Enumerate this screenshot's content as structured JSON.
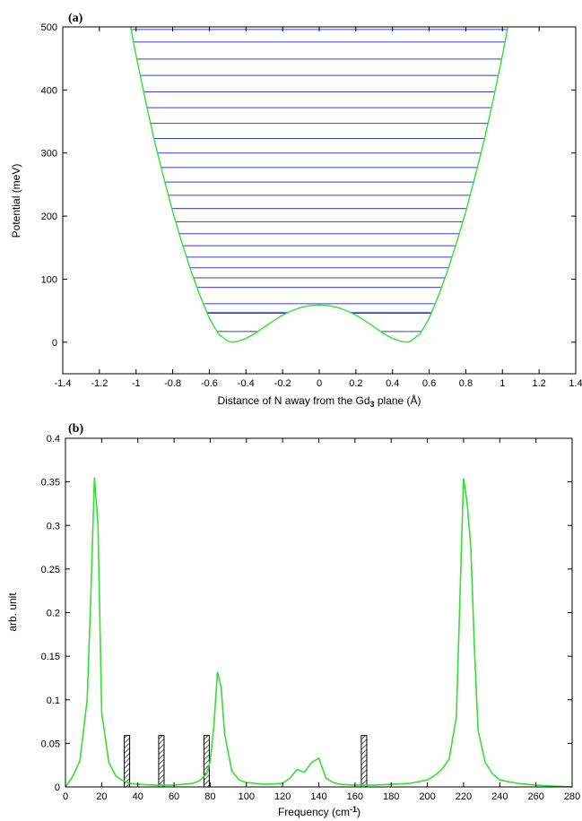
{
  "colors": {
    "curve": "#33e033",
    "levels": "#3b3bd6",
    "frame": "#000000",
    "bar_fill": "#ffffff",
    "bar_hatch": "#000000"
  },
  "chart_data": [
    {
      "type": "line",
      "panel_label": "(a)",
      "xlabel_main": "Distance of N away from the Gd",
      "xlabel_sub": "3",
      "xlabel_tail": " plane (Å)",
      "ylabel": "Potential (meV)",
      "xlim": [
        -1.4,
        1.4
      ],
      "ylim": [
        -50,
        500
      ],
      "xticks": [
        -1.4,
        -1.2,
        -1,
        -0.8,
        -0.6,
        -0.4,
        -0.2,
        0,
        0.2,
        0.4,
        0.6,
        0.8,
        1,
        1.2,
        1.4
      ],
      "xtick_labels": [
        "-1.4",
        "-1.2",
        "-1",
        "-0.8",
        "-0.6",
        "-0.4",
        "-0.2",
        "0",
        "0.2",
        "0.4",
        "0.6",
        "0.8",
        "1",
        "1.2",
        "1.4"
      ],
      "yticks": [
        0,
        100,
        200,
        300,
        400,
        500
      ],
      "ytick_labels": [
        "0",
        "100",
        "200",
        "300",
        "400",
        "500"
      ],
      "series": [
        {
          "kind": "potential",
          "x": [
            -1.03,
            -1.0,
            -0.95,
            -0.9,
            -0.85,
            -0.8,
            -0.75,
            -0.7,
            -0.65,
            -0.6,
            -0.55,
            -0.5,
            -0.48,
            -0.45,
            -0.4,
            -0.35,
            -0.3,
            -0.25,
            -0.2,
            -0.15,
            -0.1,
            -0.05,
            0,
            0.05,
            0.1,
            0.15,
            0.2,
            0.25,
            0.3,
            0.35,
            0.4,
            0.45,
            0.48,
            0.5,
            0.55,
            0.6,
            0.65,
            0.7,
            0.75,
            0.8,
            0.85,
            0.9,
            0.95,
            1.0,
            1.03
          ],
          "y": [
            500,
            455,
            385,
            320,
            262,
            207,
            158,
            113,
            73,
            38,
            13,
            2,
            0,
            1,
            6,
            14,
            24,
            34,
            43,
            50,
            55,
            58,
            59,
            58,
            55,
            50,
            43,
            34,
            24,
            14,
            6,
            1,
            0,
            2,
            13,
            38,
            73,
            113,
            158,
            207,
            262,
            320,
            385,
            455,
            500
          ]
        }
      ],
      "energy_levels": [
        17,
        46,
        47,
        61,
        73,
        87,
        102,
        118,
        135,
        153,
        172,
        191,
        212,
        233,
        254,
        277,
        300,
        323,
        347,
        372,
        397,
        423,
        449,
        476,
        496
      ]
    },
    {
      "type": "line",
      "panel_label": "(b)",
      "xlabel_main": "Frequency (cm",
      "xlabel_sup": "-1",
      "xlabel_tail": ")",
      "ylabel": "arb. unit",
      "xlim": [
        0,
        280
      ],
      "ylim": [
        0,
        0.4
      ],
      "xticks": [
        0,
        20,
        40,
        60,
        80,
        100,
        120,
        140,
        160,
        180,
        200,
        220,
        240,
        260,
        280
      ],
      "xtick_labels": [
        "0",
        "20",
        "40",
        "60",
        "80",
        "100",
        "120",
        "140",
        "160",
        "180",
        "200",
        "220",
        "240",
        "260",
        "280"
      ],
      "yticks": [
        0,
        0.05,
        0.1,
        0.15,
        0.2,
        0.25,
        0.3,
        0.35,
        0.4
      ],
      "ytick_labels": [
        "0",
        "0.05",
        "0.1",
        "0.15",
        "0.2",
        "0.25",
        "0.3",
        "0.35",
        "0.4"
      ],
      "series": [
        {
          "kind": "spectrum",
          "x": [
            0,
            4,
            8,
            12,
            14,
            16,
            18,
            20,
            24,
            28,
            32,
            36,
            40,
            50,
            60,
            70,
            74,
            78,
            80,
            82,
            84,
            86,
            88,
            92,
            96,
            100,
            110,
            120,
            124,
            128,
            132,
            136,
            140,
            144,
            148,
            152,
            160,
            170,
            180,
            190,
            200,
            204,
            208,
            212,
            216,
            220,
            222,
            224,
            226,
            228,
            232,
            236,
            240,
            250,
            260,
            270,
            280
          ],
          "y": [
            0,
            0.012,
            0.03,
            0.1,
            0.22,
            0.355,
            0.3,
            0.085,
            0.028,
            0.012,
            0.007,
            0.004,
            0.003,
            0.002,
            0.002,
            0.004,
            0.007,
            0.015,
            0.03,
            0.07,
            0.132,
            0.115,
            0.06,
            0.018,
            0.008,
            0.005,
            0.003,
            0.004,
            0.01,
            0.02,
            0.017,
            0.028,
            0.033,
            0.01,
            0.005,
            0.003,
            0.002,
            0.002,
            0.003,
            0.004,
            0.008,
            0.013,
            0.02,
            0.032,
            0.08,
            0.354,
            0.325,
            0.275,
            0.16,
            0.065,
            0.028,
            0.015,
            0.008,
            0.004,
            0.002,
            0.001,
            0
          ]
        }
      ],
      "bars": [
        {
          "x": 34,
          "value": 0.059
        },
        {
          "x": 53,
          "value": 0.059
        },
        {
          "x": 78,
          "value": 0.059
        },
        {
          "x": 165,
          "value": 0.059
        }
      ]
    }
  ]
}
